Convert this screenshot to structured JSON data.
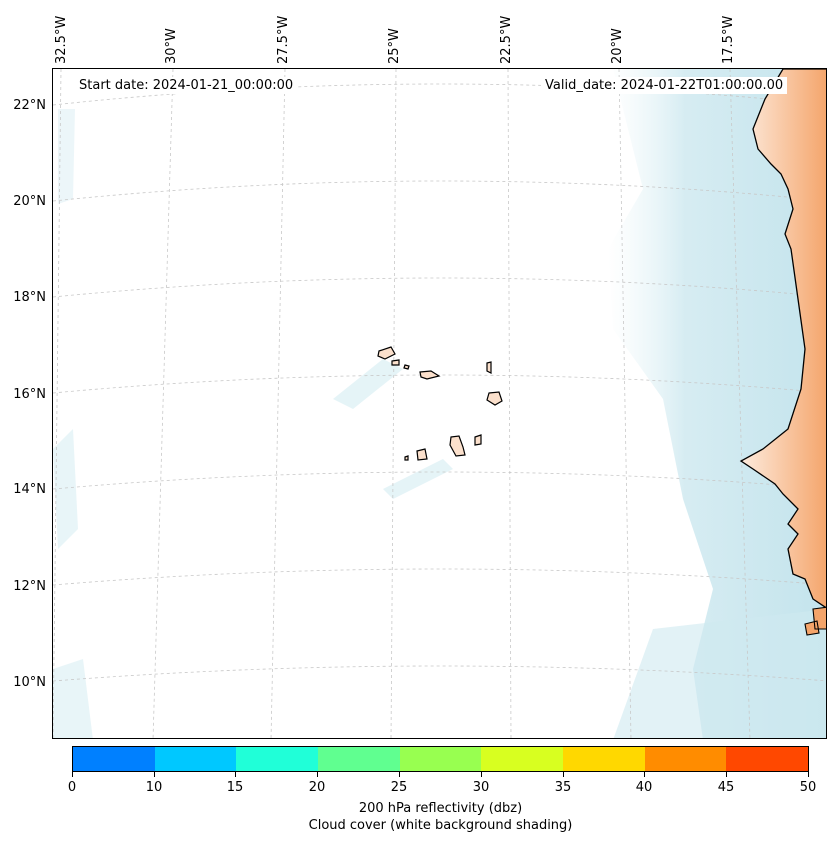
{
  "map": {
    "start_date": "Start date: 2024-01-21_00:00:00",
    "valid_date": "Valid_date: 2024-01-22T01:00:00.00",
    "longitude_labels": [
      "32.5°W",
      "30°W",
      "27.5°W",
      "25°W",
      "22.5°W",
      "20°W",
      "17.5°W"
    ],
    "latitude_labels": [
      "22°N",
      "20°N",
      "18°N",
      "16°N",
      "14°N",
      "12°N",
      "10°N"
    ],
    "colors": {
      "land_orange": "#f4a46a",
      "land_light": "#fbe0cc",
      "cloud_blue": "#bfe3ec",
      "grid": "#c8c8c8"
    }
  },
  "colorbar": {
    "tick_labels": [
      "0",
      "10",
      "15",
      "20",
      "25",
      "30",
      "35",
      "40",
      "45",
      "50"
    ],
    "colors": [
      "#0080ff",
      "#00c8ff",
      "#20ffd8",
      "#60ff90",
      "#98ff50",
      "#d8ff20",
      "#ffd800",
      "#ff8c00",
      "#ff4800"
    ],
    "label_line1": "200 hPa reflectivity (dbz)",
    "label_line2": "Cloud cover (white background shading)"
  }
}
